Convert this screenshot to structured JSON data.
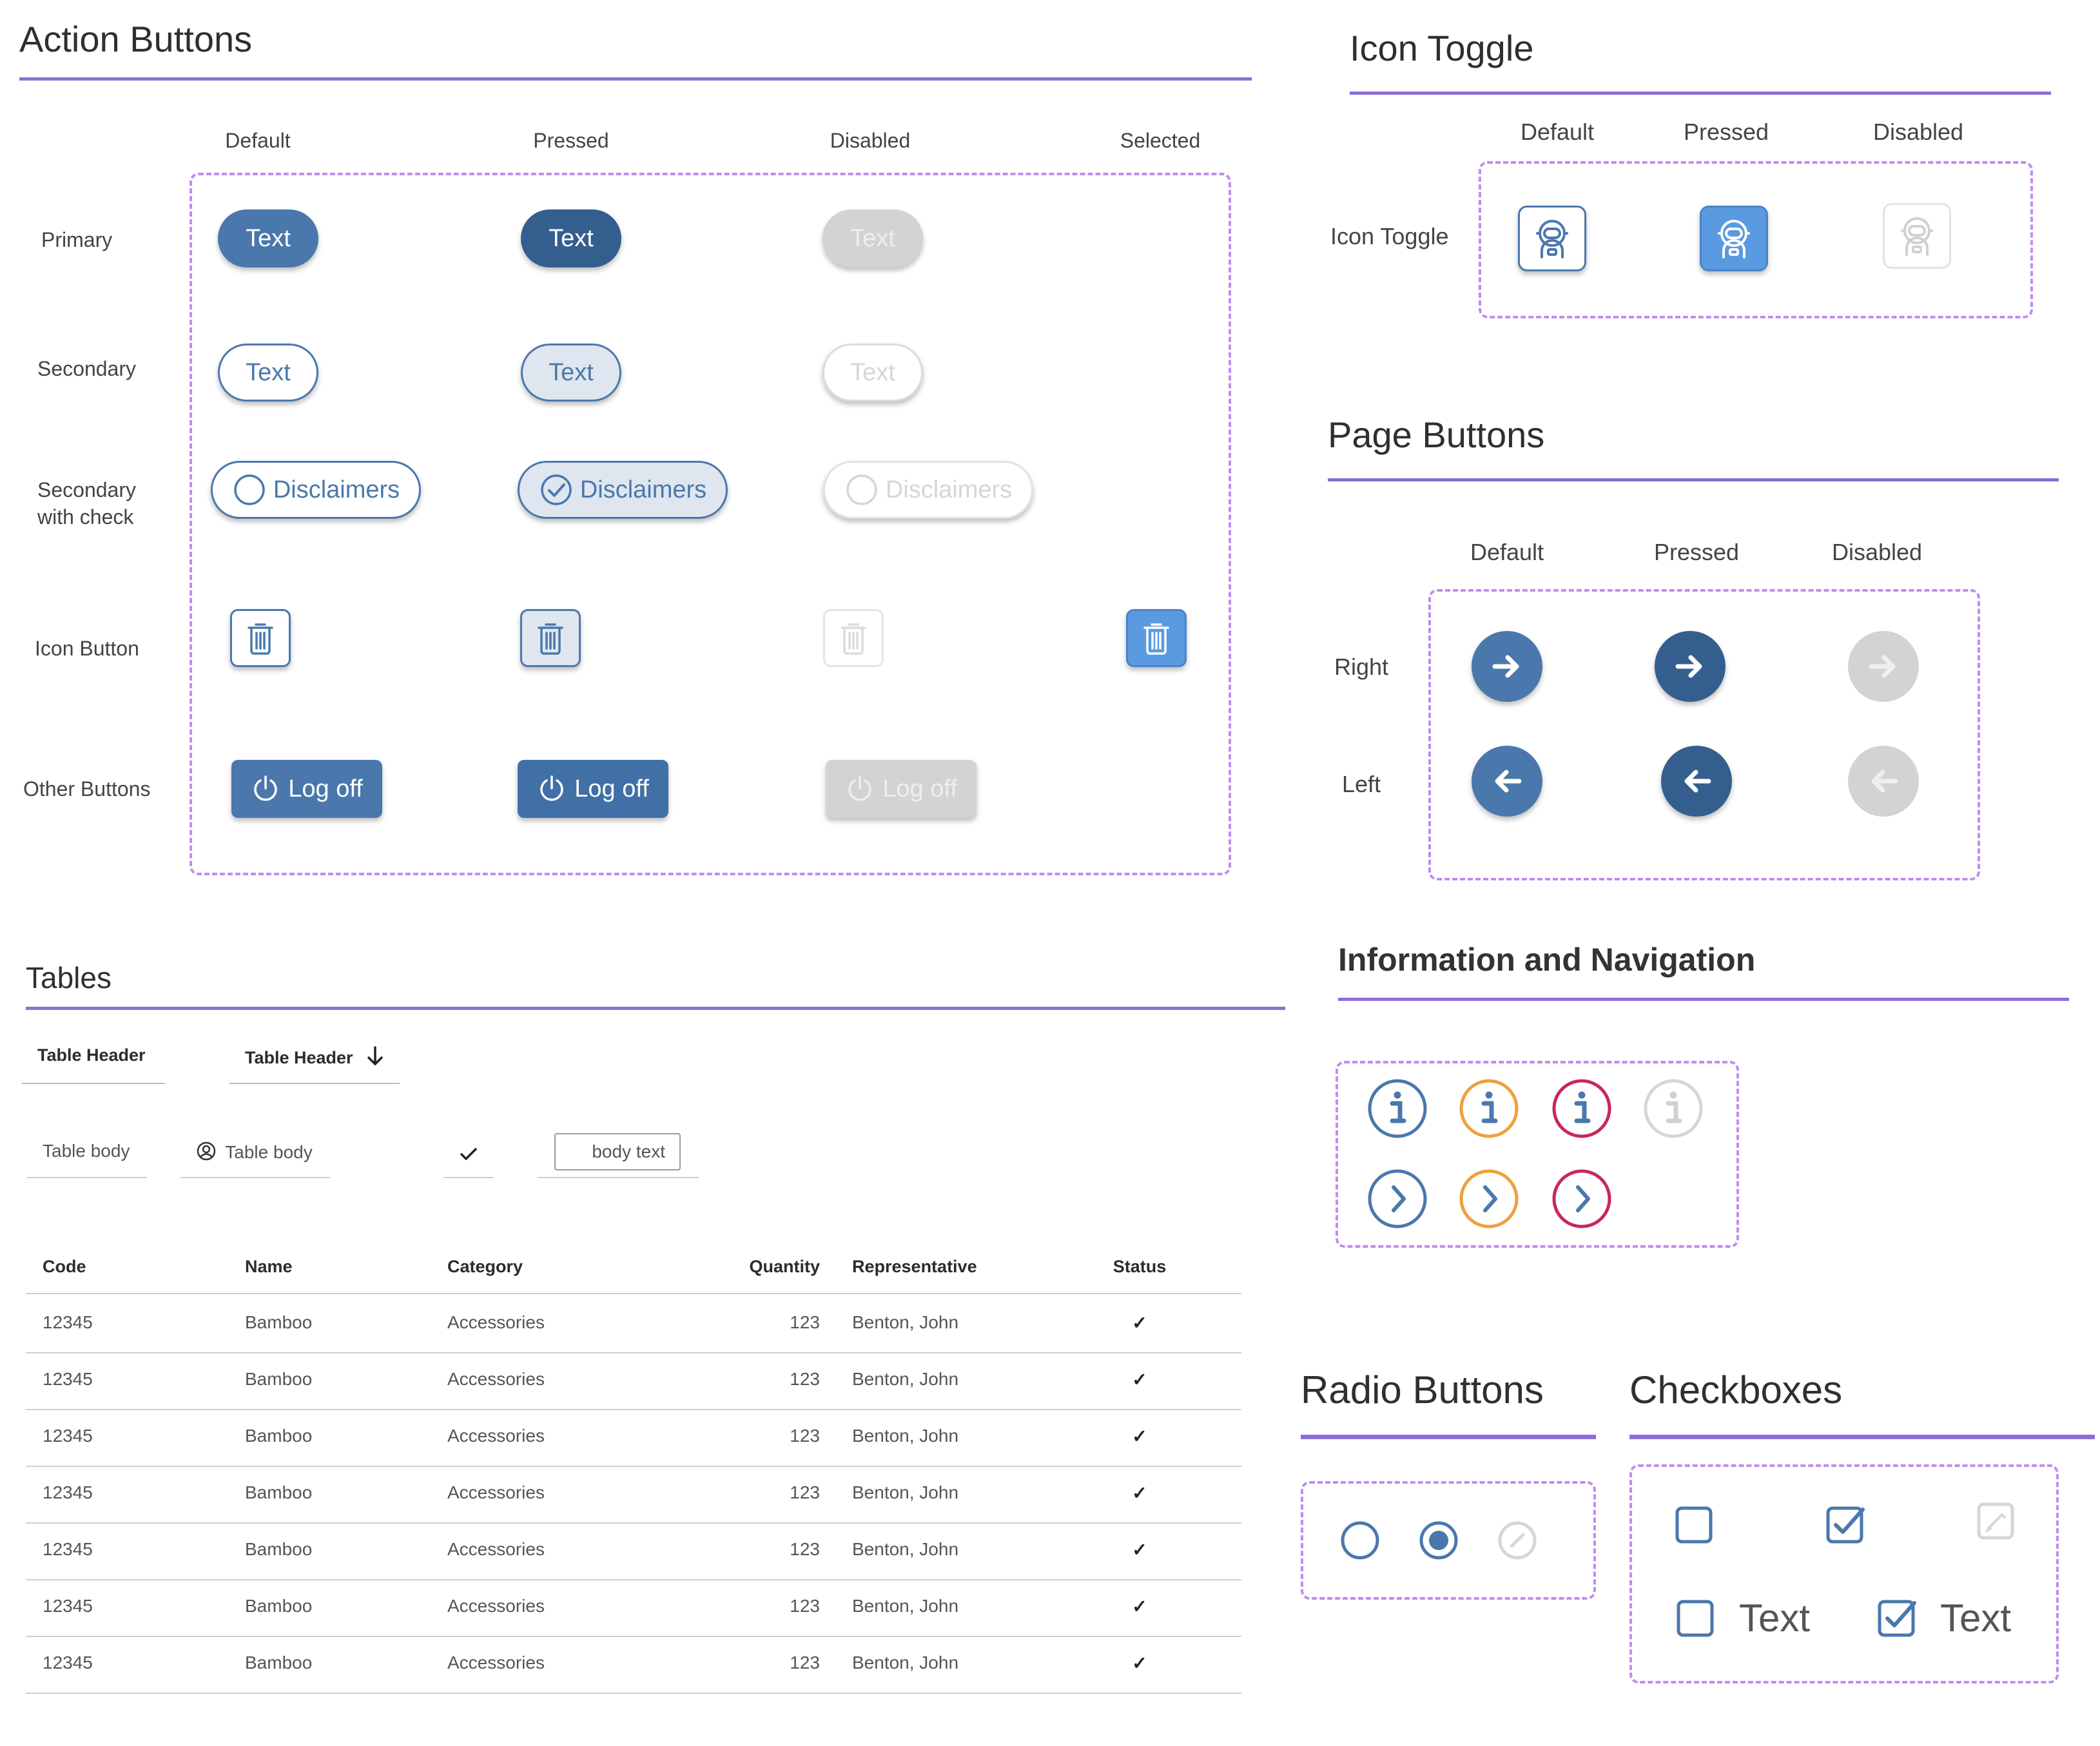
{
  "colors": {
    "accent": "#8b6fd6",
    "dashed_border": "#c08cf0",
    "primary": "#4a78ac",
    "primary_pressed": "#345e8e",
    "disabled": "#d3d3d3",
    "pressed_bg": "#dfe6ef",
    "info_orange": "#f0a03c",
    "info_crimson": "#c8285a"
  },
  "action_buttons": {
    "title": "Action Buttons",
    "columns": [
      "Default",
      "Pressed",
      "Disabled",
      "Selected"
    ],
    "rows": {
      "primary": "Primary",
      "secondary": "Secondary",
      "secondary_check": "Secondary\nwith check",
      "icon_button": "Icon Button",
      "other": "Other Buttons"
    },
    "button_text": "Text",
    "disclaimers": "Disclaimers",
    "logoff": "Log off",
    "icons": {
      "trash": "trash-icon",
      "power": "power-icon",
      "check_circle": "check-circle-icon"
    }
  },
  "icon_toggle": {
    "title": "Icon Toggle",
    "columns": [
      "Default",
      "Pressed",
      "Disabled"
    ],
    "row_label": "Icon Toggle",
    "icon": "astronaut-icon"
  },
  "page_buttons": {
    "title": "Page Buttons",
    "columns": [
      "Default",
      "Pressed",
      "Disabled"
    ],
    "rows": {
      "right": "Right",
      "left": "Left"
    },
    "icons": {
      "right": "arrow-right-icon",
      "left": "arrow-left-icon"
    }
  },
  "info_nav": {
    "title": "Information and Navigation",
    "icons": {
      "info": "info-icon",
      "chevron": "chevron-right-icon"
    }
  },
  "radio_buttons": {
    "title": "Radio Buttons"
  },
  "checkboxes": {
    "title": "Checkboxes",
    "label": "Text"
  },
  "tables": {
    "title": "Tables",
    "header_samples": [
      "Table Header",
      "Table Header"
    ],
    "body_samples": {
      "text": "Table body",
      "with_icon": "Table body",
      "input": "body text"
    },
    "columns": [
      "Code",
      "Name",
      "Category",
      "Quantity",
      "Representative",
      "Status"
    ],
    "rows": [
      [
        "12345",
        "Bamboo",
        "Accessories",
        "123",
        "Benton, John",
        "✓"
      ],
      [
        "12345",
        "Bamboo",
        "Accessories",
        "123",
        "Benton, John",
        "✓"
      ],
      [
        "12345",
        "Bamboo",
        "Accessories",
        "123",
        "Benton, John",
        "✓"
      ],
      [
        "12345",
        "Bamboo",
        "Accessories",
        "123",
        "Benton, John",
        "✓"
      ],
      [
        "12345",
        "Bamboo",
        "Accessories",
        "123",
        "Benton, John",
        "✓"
      ],
      [
        "12345",
        "Bamboo",
        "Accessories",
        "123",
        "Benton, John",
        "✓"
      ],
      [
        "12345",
        "Bamboo",
        "Accessories",
        "123",
        "Benton, John",
        "✓"
      ]
    ]
  }
}
